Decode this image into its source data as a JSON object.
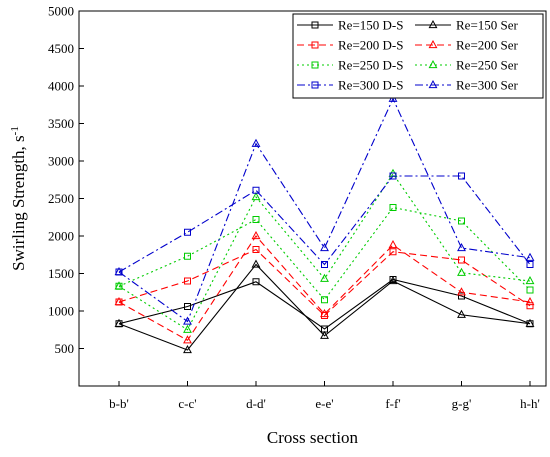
{
  "chart_data": {
    "type": "line",
    "xlabel": "Cross section",
    "ylabel": "Swirling Strength, s",
    "ylabel_superscript": "-1",
    "categories": [
      "b-b'",
      "c-c'",
      "d-d'",
      "e-e'",
      "f-f'",
      "g-g'",
      "h-h'"
    ],
    "ylim": [
      0,
      5000
    ],
    "yticks": [
      500,
      1000,
      1500,
      2000,
      2500,
      3000,
      3500,
      4000,
      4500,
      5000
    ],
    "grid": false,
    "legend_position": "top-right",
    "series": [
      {
        "name": "Re=150 D-S",
        "color": "#000000",
        "dash": "solid",
        "marker": "square",
        "values": [
          830,
          1060,
          1390,
          760,
          1420,
          1200,
          830
        ]
      },
      {
        "name": "Re=150 Ser",
        "color": "#000000",
        "dash": "solid",
        "marker": "triangle",
        "values": [
          830,
          480,
          1620,
          670,
          1400,
          950,
          830
        ]
      },
      {
        "name": "Re=200 D-S",
        "color": "#ff0000",
        "dash": "dashed",
        "marker": "square",
        "values": [
          1120,
          1400,
          1820,
          940,
          1790,
          1680,
          1070
        ]
      },
      {
        "name": "Re=200 Ser",
        "color": "#ff0000",
        "dash": "dashed",
        "marker": "triangle",
        "values": [
          1120,
          610,
          2000,
          960,
          1880,
          1250,
          1120
        ]
      },
      {
        "name": "Re=250 D-S",
        "color": "#00cc00",
        "dash": "dotted",
        "marker": "square",
        "values": [
          1330,
          1730,
          2220,
          1150,
          2380,
          2200,
          1280
        ]
      },
      {
        "name": "Re=250 Ser",
        "color": "#00cc00",
        "dash": "dotted",
        "marker": "triangle",
        "values": [
          1330,
          750,
          2520,
          1430,
          2830,
          1510,
          1400
        ]
      },
      {
        "name": "Re=300 D-S",
        "color": "#0000cc",
        "dash": "dashdot",
        "marker": "square",
        "values": [
          1520,
          2050,
          2610,
          1620,
          2800,
          2800,
          1620
        ]
      },
      {
        "name": "Re=300 Ser",
        "color": "#0000cc",
        "dash": "dashdot",
        "marker": "triangle",
        "values": [
          1520,
          860,
          3230,
          1840,
          3830,
          1840,
          1710
        ]
      }
    ]
  }
}
